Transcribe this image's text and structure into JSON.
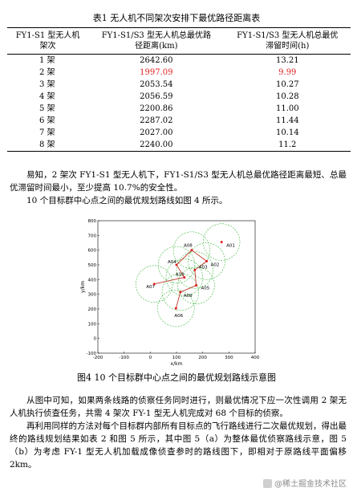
{
  "table": {
    "caption": "表1 无人机不同架次安排下最优路径距离表",
    "headers": [
      [
        "FY1-S1 型无人机",
        "架次"
      ],
      [
        "FY1-S1/S3 型无人机总最优路",
        "径距离(km)"
      ],
      [
        "FY1-S1/S3 型无人机总最优",
        "滞留时间(h)"
      ]
    ],
    "rows": [
      {
        "sorties": "1 架",
        "distance": "2642.60",
        "time": "13.21",
        "highlight": false
      },
      {
        "sorties": "2 架",
        "distance": "1997.09",
        "time": "9.99",
        "highlight": true
      },
      {
        "sorties": "3 架",
        "distance": "2053.54",
        "time": "10.27",
        "highlight": false
      },
      {
        "sorties": "4 架",
        "distance": "2056.59",
        "time": "10.28",
        "highlight": false
      },
      {
        "sorties": "5 架",
        "distance": "2200.86",
        "time": "11.00",
        "highlight": false
      },
      {
        "sorties": "6 架",
        "distance": "2287.02",
        "time": "11.44",
        "highlight": false
      },
      {
        "sorties": "7 架",
        "distance": "2027.00",
        "time": "10.14",
        "highlight": false
      },
      {
        "sorties": "8 架",
        "distance": "2240.00",
        "time": "11.2",
        "highlight": false
      }
    ]
  },
  "text": {
    "p1": "易知，2 架次 FY1-S1 型无人机下，FY1-S1/S3 型无人机总最优路径距离最短、总最优滞留时间最小，至少提高 10.7%的安全性。",
    "p2": "10 个目标群中心点之间的最优规划路线如图 4 所示。",
    "fig_caption": "图4 10 个目标群中心点之间的最优规划路线示意图",
    "p3": "从图中可知，如果两条线路的侦察任务同时进行，则最优情况下应一次性调用 2 架无人机执行侦查任务，共需 4 架次 FY-1 型无人机完成对 68 个目标的侦察。",
    "p4": "再利用同样的方法对每个目标群内部所有目标点的飞行路线进行二次最优规划，得出最终的路线规划结果如表 2 和图 5 所示，其中图 5（a）为整体最优侦察路线示意，图 5（b）为考虑 FY-1 型无人机加载成像侦查参时的路线图下，即相对于原路线平面偏移 2km。"
  },
  "chart_data": {
    "type": "scatter",
    "xlabel": "x/km",
    "ylabel": "y/km",
    "xlim": [
      -200,
      400
    ],
    "ylim": [
      -100,
      800
    ],
    "xticks": [
      -200,
      -100,
      0,
      100,
      200,
      300,
      400
    ],
    "yticks": [
      -100,
      0,
      100,
      200,
      300,
      400,
      500,
      600,
      700,
      800
    ],
    "coverage_radius_km": 70,
    "points": [
      {
        "name": "A01",
        "x": 272,
        "y": 655
      },
      {
        "name": "A02",
        "x": 215,
        "y": 525
      },
      {
        "name": "A03",
        "x": 170,
        "y": 465
      },
      {
        "name": "A04",
        "x": 100,
        "y": 500
      },
      {
        "name": "A05",
        "x": 175,
        "y": 360
      },
      {
        "name": "A06",
        "x": 98,
        "y": 205
      },
      {
        "name": "A07",
        "x": 15,
        "y": 370
      },
      {
        "name": "A08",
        "x": 158,
        "y": 600
      },
      {
        "name": "A09",
        "x": 115,
        "y": 315
      },
      {
        "name": "A10",
        "x": 130,
        "y": 415
      }
    ],
    "route": [
      "A07",
      "A10",
      "A04",
      "A08",
      "A02",
      "A03",
      "A05",
      "A09",
      "A06"
    ],
    "point_color": "#e02020",
    "circle_color": "#3cb43c",
    "route_color": "#c0392b"
  },
  "watermark": "@稀土掘金技术社区"
}
